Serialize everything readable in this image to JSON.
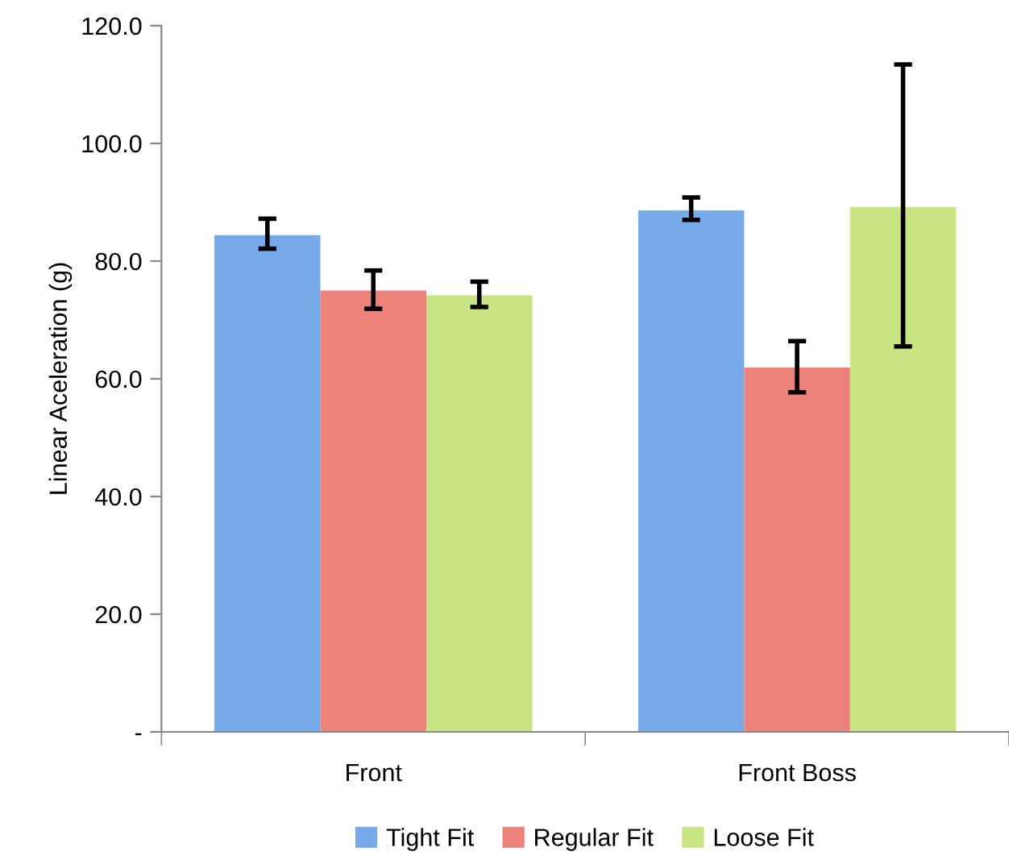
{
  "chart_data": {
    "type": "bar",
    "ylabel": "Linear Aceleration (g)",
    "categories": [
      "Front",
      "Front Boss"
    ],
    "series": [
      {
        "name": "Tight Fit",
        "color": "#78aaea",
        "values": [
          84.4,
          88.6
        ],
        "errors": [
          [
            82.1,
            87.2
          ],
          [
            87.0,
            90.8
          ]
        ]
      },
      {
        "name": "Regular Fit",
        "color": "#ec827c",
        "values": [
          75.0,
          61.9
        ],
        "errors": [
          [
            71.9,
            78.4
          ],
          [
            57.7,
            66.4
          ]
        ]
      },
      {
        "name": "Loose Fit",
        "color": "#c9e485",
        "values": [
          74.2,
          89.2
        ],
        "errors": [
          [
            72.2,
            76.5
          ],
          [
            65.5,
            113.4
          ]
        ]
      }
    ],
    "ylim": [
      0,
      120
    ],
    "yticks": [
      {
        "value": 0,
        "label": "-"
      },
      {
        "value": 20,
        "label": "20.0"
      },
      {
        "value": 40,
        "label": "40.0"
      },
      {
        "value": 60,
        "label": "60.0"
      },
      {
        "value": 80,
        "label": "80.0"
      },
      {
        "value": 100,
        "label": "100.0"
      },
      {
        "value": 120,
        "label": "120.0"
      }
    ],
    "grid": false,
    "legend": "bottom"
  }
}
